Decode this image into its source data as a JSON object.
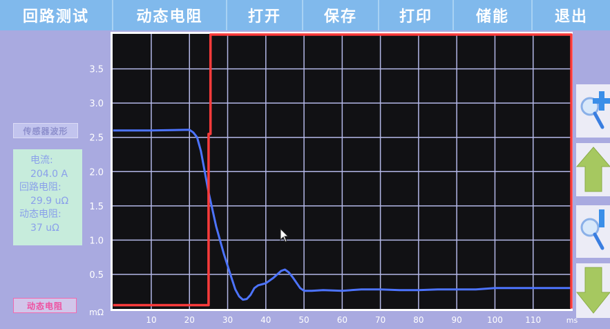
{
  "menu": [
    "回路测试",
    "动态电阻",
    "打开",
    "保存",
    "打印",
    "储能",
    "退出"
  ],
  "left_panel": {
    "sensor_button": "传感器波形",
    "current_label": "电流:",
    "current_value": "204.0 A",
    "loop_res_label": "回路电阻:",
    "loop_res_value": "29.9 uΩ",
    "dyn_res_label": "动态电阻:",
    "dyn_res_value": "37 uΩ",
    "dynamic_button": "动态电阻"
  },
  "right_panel": {
    "buttons": [
      "zoom-in-icon",
      "arrow-up-icon",
      "zoom-out-icon",
      "arrow-down-icon"
    ]
  },
  "colors": {
    "menu": "#80b9ec",
    "plot_bg": "#111114",
    "grid": "#b4b8e8",
    "blue": "#4d74ff",
    "red": "#ff3b3b"
  },
  "chart_data": {
    "type": "line",
    "xlabel": "ms",
    "ylabel": "mΩ",
    "xlim": [
      0,
      120
    ],
    "ylim": [
      0,
      4.0
    ],
    "x_ticks": [
      10,
      20,
      30,
      40,
      50,
      60,
      70,
      80,
      90,
      100,
      110
    ],
    "y_ticks": [
      0.5,
      1.0,
      1.5,
      2.0,
      2.5,
      3.0,
      3.5
    ],
    "grid": true,
    "series": [
      {
        "color": "#4d74ff",
        "x": [
          0,
          10,
          20,
          21,
          22,
          23,
          25,
          27,
          29,
          31,
          32,
          33,
          34,
          35,
          36,
          37,
          38,
          40,
          42,
          44,
          45,
          46,
          47,
          48,
          49,
          50,
          52,
          55,
          60,
          65,
          70,
          75,
          80,
          85,
          90,
          95,
          100,
          110,
          120
        ],
        "y": [
          2.6,
          2.6,
          2.61,
          2.57,
          2.5,
          2.3,
          1.7,
          1.2,
          0.8,
          0.45,
          0.28,
          0.18,
          0.13,
          0.14,
          0.2,
          0.3,
          0.34,
          0.37,
          0.45,
          0.55,
          0.57,
          0.53,
          0.46,
          0.38,
          0.3,
          0.26,
          0.26,
          0.27,
          0.26,
          0.28,
          0.28,
          0.27,
          0.27,
          0.28,
          0.28,
          0.28,
          0.3,
          0.3,
          0.3
        ]
      },
      {
        "color": "#ff3b3b",
        "x": [
          0,
          25,
          25,
          25.5,
          25.5,
          120,
          120
        ],
        "y": [
          0.05,
          0.05,
          2.55,
          2.55,
          4.0,
          4.0,
          0.0
        ]
      }
    ]
  }
}
